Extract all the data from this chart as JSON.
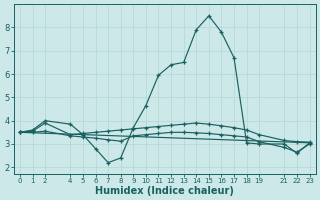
{
  "xlabel": "Humidex (Indice chaleur)",
  "background_color": "#cce8e8",
  "grid_color": "#b8d8d8",
  "line_color": "#1a6060",
  "xlim": [
    -0.5,
    23.5
  ],
  "ylim": [
    1.7,
    9.0
  ],
  "xticks": [
    0,
    1,
    2,
    4,
    5,
    6,
    7,
    8,
    9,
    10,
    11,
    12,
    13,
    14,
    15,
    16,
    17,
    18,
    19,
    21,
    22,
    23
  ],
  "yticks": [
    2,
    3,
    4,
    5,
    6,
    7,
    8
  ],
  "line1_x": [
    0,
    1,
    2,
    4,
    5,
    6,
    7,
    8,
    9,
    10,
    11,
    12,
    13,
    14,
    15,
    16,
    17,
    18,
    19,
    21,
    22,
    23
  ],
  "line1_y": [
    3.5,
    3.6,
    4.0,
    3.85,
    3.4,
    2.8,
    2.2,
    2.4,
    3.7,
    4.65,
    5.95,
    6.4,
    6.5,
    7.9,
    8.5,
    7.8,
    6.7,
    3.05,
    3.0,
    3.0,
    2.6,
    3.05
  ],
  "line2_x": [
    0,
    1,
    2,
    4,
    5,
    6,
    7,
    8,
    9,
    10,
    11,
    12,
    13,
    14,
    15,
    16,
    17,
    18,
    19,
    21,
    22,
    23
  ],
  "line2_y": [
    3.5,
    3.55,
    3.9,
    3.4,
    3.45,
    3.5,
    3.55,
    3.6,
    3.65,
    3.7,
    3.75,
    3.8,
    3.85,
    3.9,
    3.85,
    3.78,
    3.7,
    3.6,
    3.4,
    3.15,
    3.1,
    3.08
  ],
  "line3_x": [
    0,
    1,
    2,
    4,
    5,
    6,
    7,
    8,
    9,
    10,
    11,
    12,
    13,
    14,
    15,
    16,
    17,
    18,
    19,
    21,
    22,
    23
  ],
  "line3_y": [
    3.5,
    3.5,
    3.55,
    3.35,
    3.3,
    3.25,
    3.18,
    3.12,
    3.35,
    3.4,
    3.45,
    3.5,
    3.5,
    3.48,
    3.45,
    3.4,
    3.35,
    3.3,
    3.1,
    2.85,
    2.65,
    3.0
  ],
  "line4_x": [
    0,
    23
  ],
  "line4_y": [
    3.5,
    3.05
  ]
}
